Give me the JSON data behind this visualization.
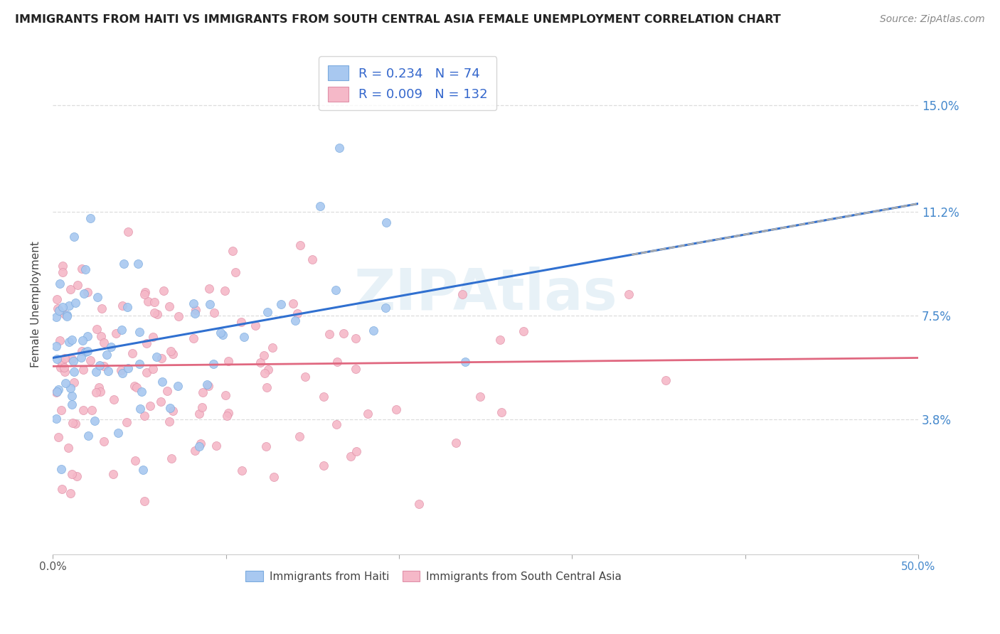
{
  "title": "IMMIGRANTS FROM HAITI VS IMMIGRANTS FROM SOUTH CENTRAL ASIA FEMALE UNEMPLOYMENT CORRELATION CHART",
  "source": "Source: ZipAtlas.com",
  "ylabel": "Female Unemployment",
  "ytick_labels": [
    "3.8%",
    "7.5%",
    "11.2%",
    "15.0%"
  ],
  "ytick_values": [
    0.038,
    0.075,
    0.112,
    0.15
  ],
  "xlim": [
    0.0,
    0.5
  ],
  "ylim": [
    -0.01,
    0.168
  ],
  "haiti_R": "0.234",
  "haiti_N": "74",
  "asia_R": "0.009",
  "asia_N": "132",
  "haiti_color": "#a8c8f0",
  "haiti_edge_color": "#7aaade",
  "asia_color": "#f5b8c8",
  "asia_edge_color": "#e090a8",
  "haiti_line_color": "#3070d0",
  "asia_line_color": "#e06880",
  "trend_line_dashed_color": "#aaaaaa",
  "watermark_color": "#d0e4f0",
  "legend_text_color": "#3366cc",
  "legend_label_color": "#333333",
  "background_color": "#ffffff",
  "grid_color": "#dddddd",
  "right_axis_color": "#4488cc",
  "watermark": "ZIPAtlas",
  "haiti_seed": 42,
  "asia_seed": 17
}
